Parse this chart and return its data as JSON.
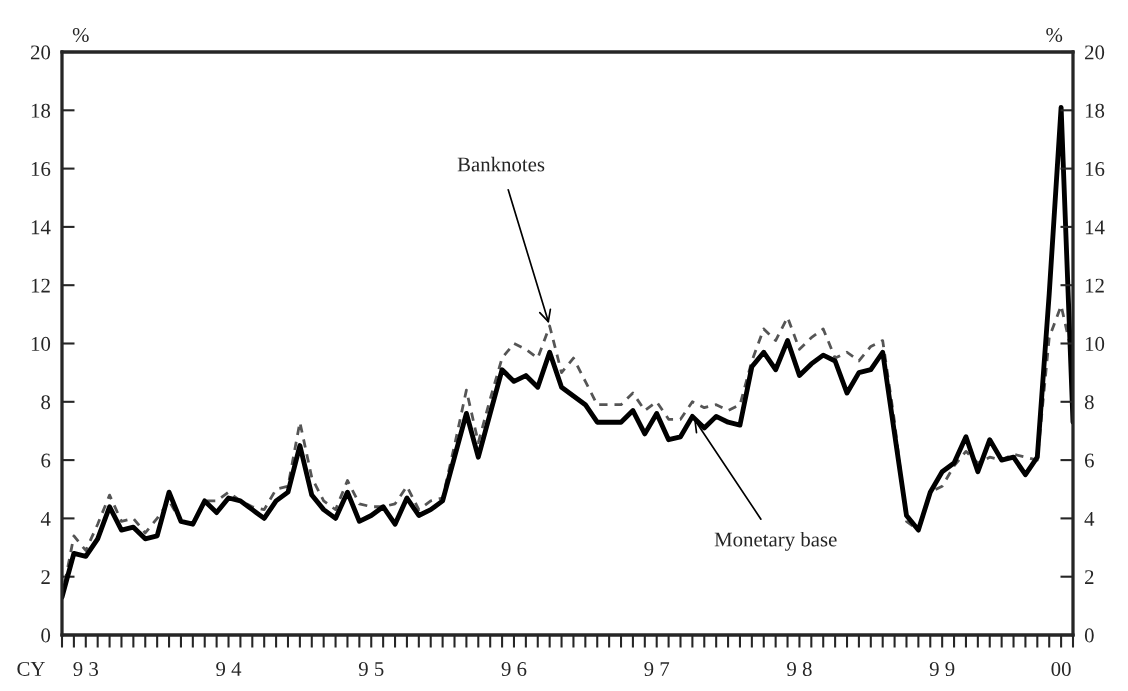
{
  "chart_data": {
    "type": "line",
    "ylabel": "%",
    "y2label": "%",
    "x": [
      "1993-01",
      "1993-02",
      "1993-03",
      "1993-04",
      "1993-05",
      "1993-06",
      "1993-07",
      "1993-08",
      "1993-09",
      "1993-10",
      "1993-11",
      "1993-12",
      "1994-01",
      "1994-02",
      "1994-03",
      "1994-04",
      "1994-05",
      "1994-06",
      "1994-07",
      "1994-08",
      "1994-09",
      "1994-10",
      "1994-11",
      "1994-12",
      "1995-01",
      "1995-02",
      "1995-03",
      "1995-04",
      "1995-05",
      "1995-06",
      "1995-07",
      "1995-08",
      "1995-09",
      "1995-10",
      "1995-11",
      "1995-12",
      "1996-01",
      "1996-02",
      "1996-03",
      "1996-04",
      "1996-05",
      "1996-06",
      "1996-07",
      "1996-08",
      "1996-09",
      "1996-10",
      "1996-11",
      "1996-12",
      "1997-01",
      "1997-02",
      "1997-03",
      "1997-04",
      "1997-05",
      "1997-06",
      "1997-07",
      "1997-08",
      "1997-09",
      "1997-10",
      "1997-11",
      "1997-12",
      "1998-01",
      "1998-02",
      "1998-03",
      "1998-04",
      "1998-05",
      "1998-06",
      "1998-07",
      "1998-08",
      "1998-09",
      "1998-10",
      "1998-11",
      "1998-12",
      "1999-01",
      "1999-02",
      "1999-03",
      "1999-04",
      "1999-05",
      "1999-06",
      "1999-07",
      "1999-08",
      "1999-09",
      "1999-10",
      "1999-11",
      "1999-12",
      "2000-01",
      "2000-02"
    ],
    "series": [
      {
        "color": "#555555",
        "line_style": "dashed",
        "values": [
          1.3,
          3.4,
          2.9,
          3.8,
          4.8,
          3.9,
          4.0,
          3.5,
          4.0,
          4.6,
          3.9,
          3.8,
          4.6,
          4.6,
          4.9,
          4.6,
          4.4,
          4.3,
          5.0,
          5.1,
          7.3,
          5.4,
          4.6,
          4.3,
          5.3,
          4.5,
          4.4,
          4.4,
          4.5,
          5.1,
          4.3,
          4.6,
          4.7,
          6.5,
          8.4,
          6.6,
          8.1,
          9.5,
          10.0,
          9.8,
          9.5,
          10.6,
          9.0,
          9.5,
          8.7,
          7.9,
          7.9,
          7.9,
          8.3,
          7.7,
          8.0,
          7.4,
          7.4,
          8.0,
          7.8,
          7.9,
          7.7,
          7.9,
          9.4,
          10.5,
          10.1,
          10.9,
          9.8,
          10.2,
          10.5,
          9.5,
          9.7,
          9.4,
          9.9,
          10.1,
          7.3,
          3.9,
          3.6,
          4.9,
          5.1,
          5.8,
          6.3,
          5.9,
          6.1,
          6.0,
          6.2,
          6.1,
          6.0,
          10.2,
          11.3,
          9.5
        ]
      },
      {
        "color": "#000000",
        "line_style": "solid",
        "values": [
          1.3,
          2.8,
          2.7,
          3.3,
          4.4,
          3.6,
          3.7,
          3.3,
          3.4,
          4.9,
          3.9,
          3.8,
          4.6,
          4.2,
          4.7,
          4.6,
          4.3,
          4.0,
          4.6,
          4.9,
          6.5,
          4.8,
          4.3,
          4.0,
          4.9,
          3.9,
          4.1,
          4.4,
          3.8,
          4.7,
          4.1,
          4.3,
          4.6,
          6.1,
          7.6,
          6.1,
          7.6,
          9.1,
          8.7,
          8.9,
          8.5,
          9.7,
          8.5,
          8.2,
          7.9,
          7.3,
          7.3,
          7.3,
          7.7,
          6.9,
          7.6,
          6.7,
          6.8,
          7.5,
          7.1,
          7.5,
          7.3,
          7.2,
          9.2,
          9.7,
          9.1,
          10.1,
          8.9,
          9.3,
          9.6,
          9.4,
          8.3,
          9.0,
          9.1,
          9.7,
          6.9,
          4.1,
          3.6,
          4.9,
          5.6,
          5.9,
          6.8,
          5.6,
          6.7,
          6.0,
          6.1,
          5.5,
          6.1,
          11.7,
          18.1,
          7.3
        ]
      }
    ],
    "xlim": [
      "1993-01",
      "2000-02"
    ],
    "xticks": [
      {
        "value": "1993-01",
        "label": null
      },
      {
        "value": "1993-02",
        "label": null
      },
      {
        "value": "1993-03",
        "label": "9 3"
      },
      {
        "value": "1993-04",
        "label": null
      },
      {
        "value": "1993-05",
        "label": null
      },
      {
        "value": "1993-06",
        "label": null
      },
      {
        "value": "1993-07",
        "label": null
      },
      {
        "value": "1993-08",
        "label": null
      },
      {
        "value": "1993-09",
        "label": null
      },
      {
        "value": "1993-10",
        "label": null
      },
      {
        "value": "1993-11",
        "label": null
      },
      {
        "value": "1993-12",
        "label": null
      },
      {
        "value": "1994-01",
        "label": null
      },
      {
        "value": "1994-02",
        "label": null
      },
      {
        "value": "1994-03",
        "label": "9 4"
      },
      {
        "value": "1994-04",
        "label": null
      },
      {
        "value": "1994-05",
        "label": null
      },
      {
        "value": "1994-06",
        "label": null
      },
      {
        "value": "1994-07",
        "label": null
      },
      {
        "value": "1994-08",
        "label": null
      },
      {
        "value": "1994-09",
        "label": null
      },
      {
        "value": "1994-10",
        "label": null
      },
      {
        "value": "1994-11",
        "label": null
      },
      {
        "value": "1994-12",
        "label": null
      },
      {
        "value": "1995-01",
        "label": null
      },
      {
        "value": "1995-02",
        "label": null
      },
      {
        "value": "1995-03",
        "label": "9 5"
      },
      {
        "value": "1995-04",
        "label": null
      },
      {
        "value": "1995-05",
        "label": null
      },
      {
        "value": "1995-06",
        "label": null
      },
      {
        "value": "1995-07",
        "label": null
      },
      {
        "value": "1995-08",
        "label": null
      },
      {
        "value": "1995-09",
        "label": null
      },
      {
        "value": "1995-10",
        "label": null
      },
      {
        "value": "1995-11",
        "label": null
      },
      {
        "value": "1995-12",
        "label": null
      },
      {
        "value": "1996-01",
        "label": null
      },
      {
        "value": "1996-02",
        "label": null
      },
      {
        "value": "1996-03",
        "label": "9 6"
      },
      {
        "value": "1996-04",
        "label": null
      },
      {
        "value": "1996-05",
        "label": null
      },
      {
        "value": "1996-06",
        "label": null
      },
      {
        "value": "1996-07",
        "label": null
      },
      {
        "value": "1996-08",
        "label": null
      },
      {
        "value": "1996-09",
        "label": null
      },
      {
        "value": "1996-10",
        "label": null
      },
      {
        "value": "1996-11",
        "label": null
      },
      {
        "value": "1996-12",
        "label": null
      },
      {
        "value": "1997-01",
        "label": null
      },
      {
        "value": "1997-02",
        "label": null
      },
      {
        "value": "1997-03",
        "label": "9 7"
      },
      {
        "value": "1997-04",
        "label": null
      },
      {
        "value": "1997-05",
        "label": null
      },
      {
        "value": "1997-06",
        "label": null
      },
      {
        "value": "1997-07",
        "label": null
      },
      {
        "value": "1997-08",
        "label": null
      },
      {
        "value": "1997-09",
        "label": null
      },
      {
        "value": "1997-10",
        "label": null
      },
      {
        "value": "1997-11",
        "label": null
      },
      {
        "value": "1997-12",
        "label": null
      },
      {
        "value": "1998-01",
        "label": null
      },
      {
        "value": "1998-02",
        "label": null
      },
      {
        "value": "1998-03",
        "label": "9 8"
      },
      {
        "value": "1998-04",
        "label": null
      },
      {
        "value": "1998-05",
        "label": null
      },
      {
        "value": "1998-06",
        "label": null
      },
      {
        "value": "1998-07",
        "label": null
      },
      {
        "value": "1998-08",
        "label": null
      },
      {
        "value": "1998-09",
        "label": null
      },
      {
        "value": "1998-10",
        "label": null
      },
      {
        "value": "1998-11",
        "label": null
      },
      {
        "value": "1998-12",
        "label": null
      },
      {
        "value": "1999-01",
        "label": null
      },
      {
        "value": "1999-02",
        "label": null
      },
      {
        "value": "1999-03",
        "label": "9 9"
      },
      {
        "value": "1999-04",
        "label": null
      },
      {
        "value": "1999-05",
        "label": null
      },
      {
        "value": "1999-06",
        "label": null
      },
      {
        "value": "1999-07",
        "label": null
      },
      {
        "value": "1999-08",
        "label": null
      },
      {
        "value": "1999-09",
        "label": null
      },
      {
        "value": "1999-10",
        "label": null
      },
      {
        "value": "1999-11",
        "label": null
      },
      {
        "value": "1999-12",
        "label": null
      },
      {
        "value": "2000-01",
        "label": "00"
      },
      {
        "value": "2000-02",
        "label": null
      }
    ],
    "ylim": [
      0,
      20
    ],
    "yticks": [
      0,
      2,
      4,
      6,
      8,
      10,
      12,
      14,
      16,
      18,
      20
    ],
    "y2lim": [
      0,
      20
    ],
    "y2ticks": [
      0,
      2,
      4,
      6,
      8,
      10,
      12,
      14,
      16,
      18,
      20
    ],
    "grid": false,
    "legend": false,
    "annotations": [
      {
        "text": "Banknotes",
        "x": "1996-06",
        "y": 10.6
      },
      {
        "text": "Monetary base",
        "x": "1997-06",
        "y": 7.5
      },
      "CY"
    ]
  }
}
